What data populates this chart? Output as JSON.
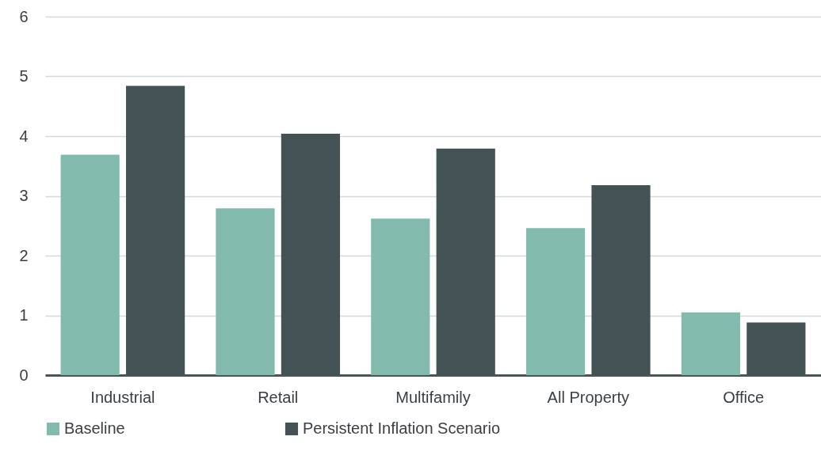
{
  "chart_data": {
    "type": "bar",
    "categories": [
      "Industrial",
      "Retail",
      "Multifamily",
      "All Property",
      "Office"
    ],
    "series": [
      {
        "name": "Baseline",
        "color": "#82bbad",
        "values": [
          3.69,
          2.79,
          2.62,
          2.46,
          1.05
        ]
      },
      {
        "name": "Persistent Inflation Scenario",
        "color": "#435255",
        "values": [
          4.84,
          4.04,
          3.79,
          3.18,
          0.88
        ]
      }
    ],
    "ylim": [
      0,
      6
    ],
    "yticks": [
      0,
      1,
      2,
      3,
      4,
      5,
      6
    ],
    "grid": "y",
    "legend": "bottom"
  }
}
